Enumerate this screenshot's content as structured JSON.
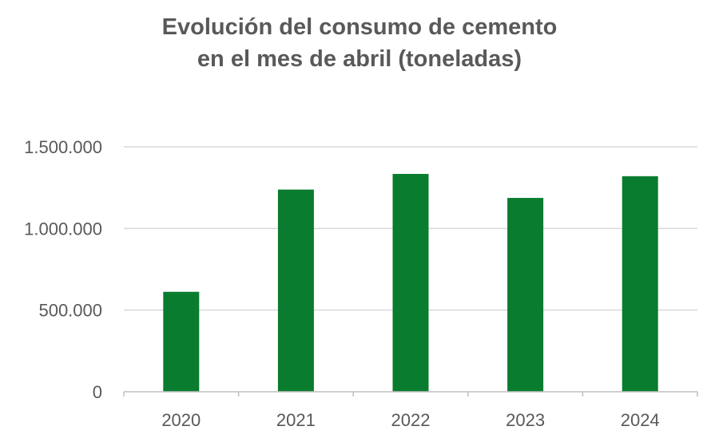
{
  "chart_data": {
    "type": "bar",
    "title_lines": [
      "Evolución del consumo de cemento",
      "en el mes de abril (toneladas)"
    ],
    "categories": [
      "2020",
      "2021",
      "2022",
      "2023",
      "2024"
    ],
    "values": [
      612000,
      1238000,
      1334000,
      1187000,
      1320000
    ],
    "ylim": [
      0,
      1500000
    ],
    "y_ticks": [
      0,
      500000,
      1000000,
      1500000
    ],
    "y_tick_labels": [
      "0",
      "500.000",
      "1.000.000",
      "1.500.000"
    ],
    "grid": true,
    "legend": "none",
    "xlabel": "",
    "ylabel": "",
    "colors": {
      "bar": "#0a7c2f",
      "grid": "#d9d9d9",
      "axis": "#bfbfbf",
      "text": "#595959"
    }
  }
}
